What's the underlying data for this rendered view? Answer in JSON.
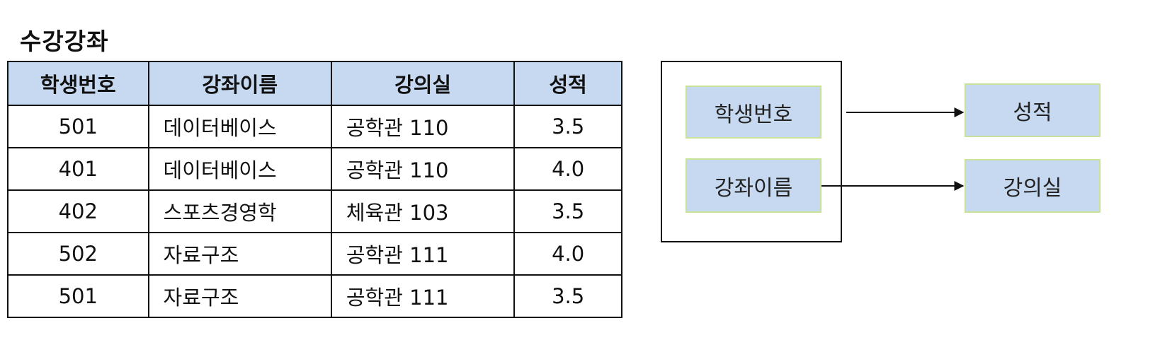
{
  "title": "수강강좌",
  "table": {
    "headers": [
      "학생번호",
      "강좌이름",
      "강의실",
      "성적"
    ],
    "rows": [
      [
        "501",
        "데이터베이스",
        "공학관 110",
        "3.5"
      ],
      [
        "401",
        "데이터베이스",
        "공학관 110",
        "4.0"
      ],
      [
        "402",
        "스포츠경영학",
        "체육관 103",
        "3.5"
      ],
      [
        "502",
        "자료구조",
        "공학관 111",
        "4.0"
      ],
      [
        "501",
        "자료구조",
        "공학관 111",
        "3.5"
      ]
    ]
  },
  "diagram": {
    "determinants": [
      "학생번호",
      "강좌이름"
    ],
    "dependents": [
      "성적",
      "강의실"
    ]
  },
  "colors": {
    "header_fill": "#c6d9f0",
    "box_fill": "#c6d9f0",
    "box_border": "#c9e29a",
    "line": "#111111"
  }
}
